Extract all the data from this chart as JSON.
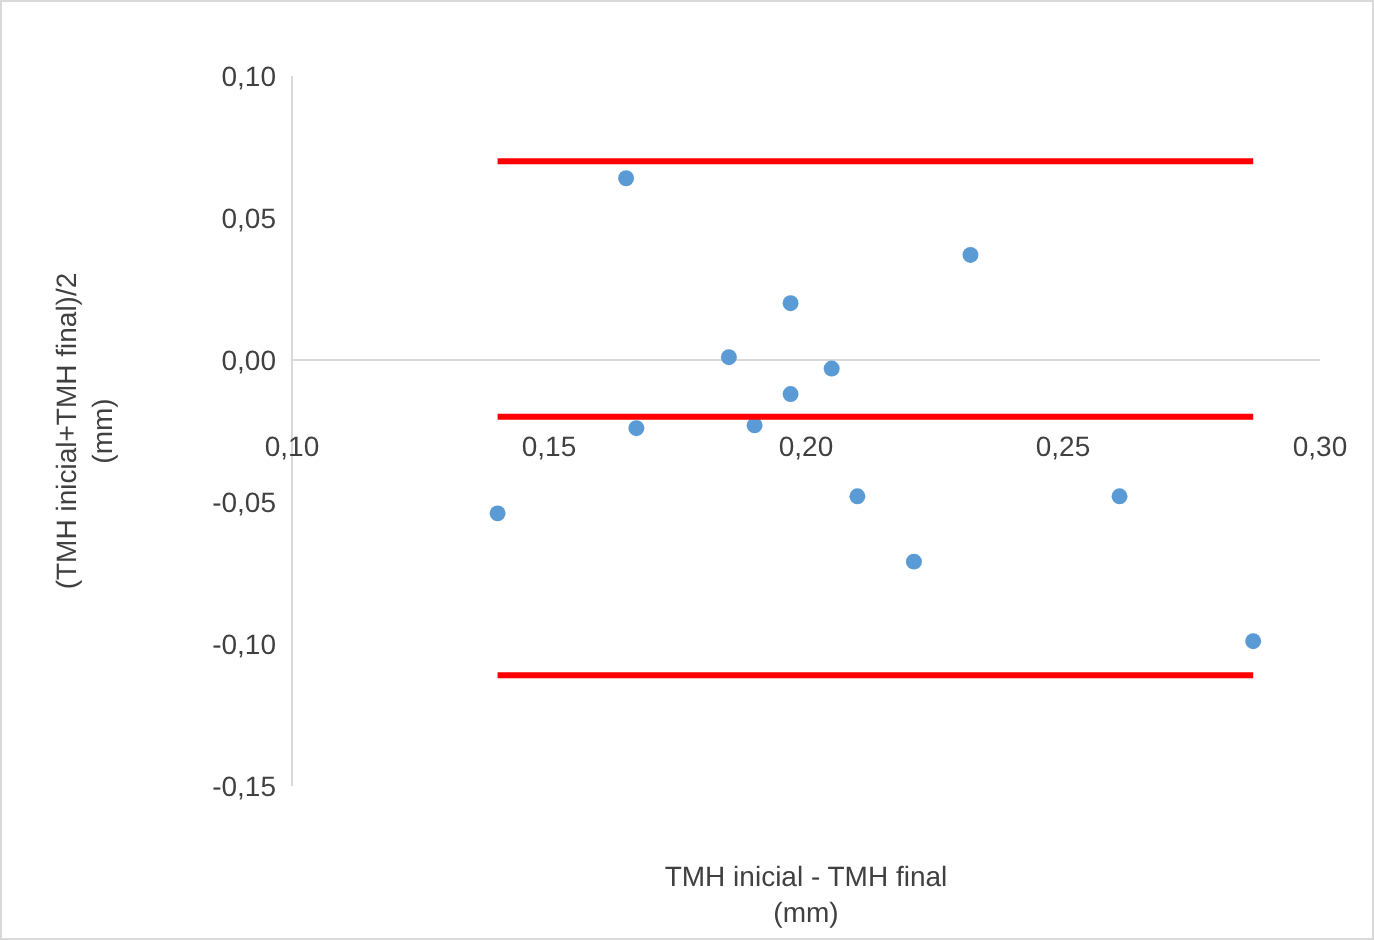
{
  "chart_data": {
    "type": "scatter",
    "xlabel": "TMH inicial - TMH final\n(mm)",
    "ylabel": "(TMH inicial+TMH final)/2\n(mm)",
    "xlim": [
      0.1,
      0.3
    ],
    "ylim": [
      -0.15,
      0.1
    ],
    "xticks": [
      {
        "value": 0.1,
        "label": "0,10"
      },
      {
        "value": 0.15,
        "label": "0,15"
      },
      {
        "value": 0.2,
        "label": "0,20"
      },
      {
        "value": 0.25,
        "label": "0,25"
      },
      {
        "value": 0.3,
        "label": "0,30"
      }
    ],
    "yticks": [
      {
        "value": -0.15,
        "label": "-0,15"
      },
      {
        "value": -0.1,
        "label": "-0,10"
      },
      {
        "value": -0.05,
        "label": "-0,05"
      },
      {
        "value": 0,
        "label": "0,00"
      },
      {
        "value": 0.05,
        "label": "0,05"
      },
      {
        "value": 0.1,
        "label": "0,10"
      }
    ],
    "grid": false,
    "series": [
      {
        "marker": "circle",
        "color": "#5b9bd5",
        "x": [
          0.14,
          0.165,
          0.167,
          0.185,
          0.19,
          0.197,
          0.197,
          0.205,
          0.21,
          0.221,
          0.232,
          0.261,
          0.287
        ],
        "values": [
          -0.054,
          0.064,
          -0.024,
          0.001,
          -0.023,
          0.02,
          -0.012,
          -0.003,
          -0.048,
          -0.071,
          0.037,
          -0.048,
          -0.099
        ]
      },
      {
        "type": "line",
        "color": "#ff0000",
        "x": [
          0.14,
          0.287
        ],
        "values": [
          0.07,
          0.07
        ]
      },
      {
        "type": "line",
        "color": "#ff0000",
        "x": [
          0.14,
          0.287
        ],
        "values": [
          -0.02,
          -0.02
        ]
      },
      {
        "type": "line",
        "color": "#ff0000",
        "x": [
          0.14,
          0.287
        ],
        "values": [
          -0.111,
          -0.111
        ]
      }
    ]
  }
}
